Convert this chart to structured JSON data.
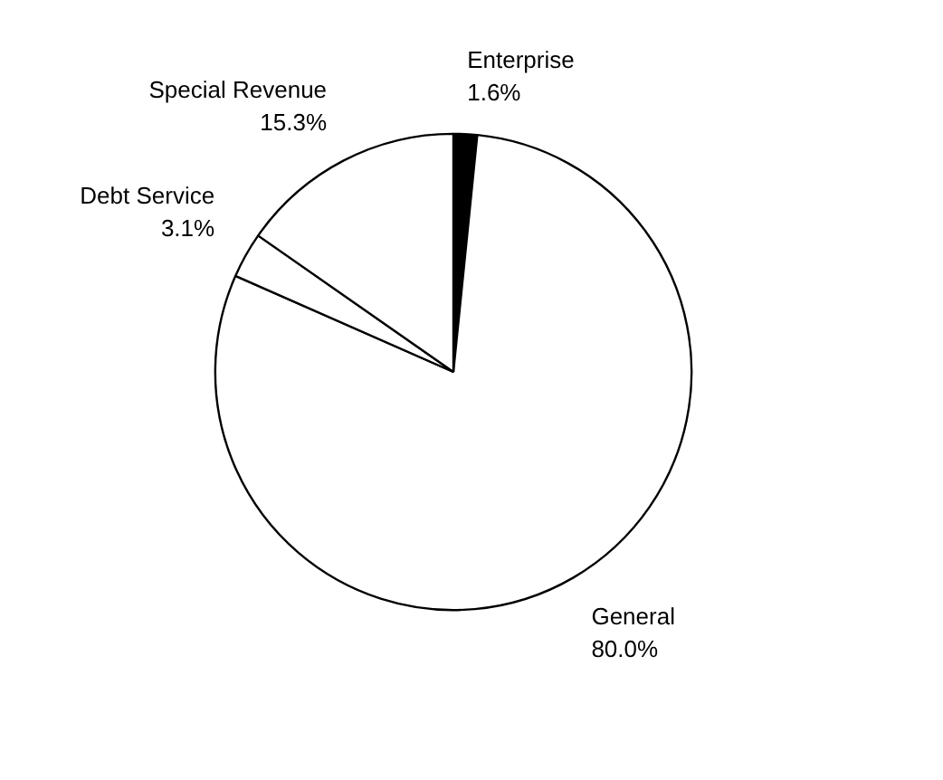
{
  "chart_data": {
    "type": "pie",
    "categories": [
      "Enterprise",
      "General",
      "Debt Service",
      "Special Revenue"
    ],
    "values": [
      1.6,
      80.0,
      3.1,
      15.3
    ],
    "colors": [
      "#000000",
      "#ffffff",
      "#ffffff",
      "#ffffff"
    ],
    "value_labels": [
      "1.6%",
      "80.0%",
      "3.1%",
      "15.3%"
    ]
  }
}
